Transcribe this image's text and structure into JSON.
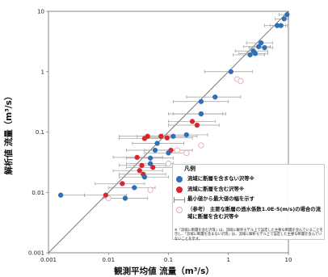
{
  "chart_data": {
    "type": "scatter",
    "xlabel": "観測平均値 流量（m³/s）",
    "ylabel": "解析値 流量（m³/s）",
    "xscale": "log",
    "yscale": "log",
    "xlim": [
      0.001,
      10
    ],
    "ylim": [
      0.001,
      10
    ],
    "xticks": [
      "0.001",
      "0.01",
      "0.1",
      "1",
      "10"
    ],
    "yticks": [
      "0.001",
      "0.01",
      "0.1",
      "1",
      "10"
    ],
    "diagonal": "y = x",
    "legend_placement": "bottom-right",
    "legend_title": "凡例",
    "series": [
      {
        "name": "流域に断層を含まない沢等※",
        "marker": "filled-circle",
        "color": "#2e6fb5",
        "points": [
          {
            "x": 0.0016,
            "y": 0.009,
            "xmin": 0.0016,
            "xmax": 0.004
          },
          {
            "x": 0.019,
            "y": 0.008,
            "xmin": 0.008,
            "xmax": 0.045
          },
          {
            "x": 0.027,
            "y": 0.012,
            "xmin": 0.01,
            "xmax": 0.06
          },
          {
            "x": 0.04,
            "y": 0.018,
            "xmin": 0.015,
            "xmax": 0.1
          },
          {
            "x": 0.05,
            "y": 0.03,
            "xmin": 0.02,
            "xmax": 0.12
          },
          {
            "x": 0.05,
            "y": 0.037,
            "xmin": 0.02,
            "xmax": 0.12
          },
          {
            "x": 0.06,
            "y": 0.05,
            "xmin": 0.02,
            "xmax": 0.15
          },
          {
            "x": 0.065,
            "y": 0.065,
            "xmin": 0.025,
            "xmax": 0.18
          },
          {
            "x": 0.1,
            "y": 0.045,
            "xmin": 0.04,
            "xmax": 0.2
          },
          {
            "x": 0.12,
            "y": 0.085,
            "xmin": 0.04,
            "xmax": 0.3
          },
          {
            "x": 0.2,
            "y": 0.09,
            "xmin": 0.08,
            "xmax": 0.45
          },
          {
            "x": 0.35,
            "y": 0.2,
            "xmin": 0.1,
            "xmax": 0.9
          },
          {
            "x": 0.35,
            "y": 0.32,
            "xmin": 0.12,
            "xmax": 1.0
          },
          {
            "x": 0.6,
            "y": 0.38,
            "xmin": 0.2,
            "xmax": 1.6
          },
          {
            "x": 1.1,
            "y": 1.0,
            "xmin": 0.4,
            "xmax": 2.5
          },
          {
            "x": 2.3,
            "y": 1.9,
            "xmin": 1.2,
            "xmax": 4.0
          },
          {
            "x": 2.6,
            "y": 2.2,
            "xmin": 1.3,
            "xmax": 4.5
          },
          {
            "x": 2.8,
            "y": 2.0,
            "xmin": 1.5,
            "xmax": 4.5
          },
          {
            "x": 3.2,
            "y": 2.6,
            "xmin": 1.8,
            "xmax": 5.0
          },
          {
            "x": 3.5,
            "y": 3.0,
            "xmin": 2.0,
            "xmax": 5.5
          },
          {
            "x": 4.0,
            "y": 2.5,
            "xmin": 2.2,
            "xmax": 5.5
          },
          {
            "x": 6.5,
            "y": 5.8,
            "xmin": 4.0,
            "xmax": 9.0
          },
          {
            "x": 7.5,
            "y": 5.8,
            "xmin": 5.0,
            "xmax": 9.5
          },
          {
            "x": 8.5,
            "y": 7.5,
            "xmin": 6.0,
            "xmax": 9.8
          },
          {
            "x": 9.5,
            "y": 8.8,
            "xmin": 7.0,
            "xmax": 10.0
          }
        ]
      },
      {
        "name": "流域に断層を含む沢等※",
        "marker": "filled-circle",
        "color": "#d9262e",
        "points": [
          {
            "x": 0.009,
            "y": 0.009,
            "xmin": 0.004,
            "xmax": 0.02
          },
          {
            "x": 0.017,
            "y": 0.014,
            "xmin": 0.006,
            "xmax": 0.04
          },
          {
            "x": 0.03,
            "y": 0.038,
            "xmin": 0.012,
            "xmax": 0.08
          },
          {
            "x": 0.033,
            "y": 0.023,
            "xmin": 0.012,
            "xmax": 0.08
          },
          {
            "x": 0.036,
            "y": 0.028,
            "xmin": 0.015,
            "xmax": 0.09
          },
          {
            "x": 0.038,
            "y": 0.02,
            "xmin": 0.015,
            "xmax": 0.09
          },
          {
            "x": 0.04,
            "y": 0.078,
            "xmin": 0.015,
            "xmax": 0.1
          },
          {
            "x": 0.045,
            "y": 0.085,
            "xmin": 0.015,
            "xmax": 0.12
          },
          {
            "x": 0.055,
            "y": 0.026,
            "xmin": 0.02,
            "xmax": 0.12
          },
          {
            "x": 0.075,
            "y": 0.085,
            "xmin": 0.03,
            "xmax": 0.2
          },
          {
            "x": 0.095,
            "y": 0.08,
            "xmin": 0.04,
            "xmax": 0.25
          },
          {
            "x": 0.11,
            "y": 0.05,
            "xmin": 0.04,
            "xmax": 0.25
          },
          {
            "x": 0.25,
            "y": 0.15,
            "xmin": 0.1,
            "xmax": 0.6
          },
          {
            "x": 0.3,
            "y": 0.13,
            "xmin": 0.1,
            "xmax": 0.7
          },
          {
            "x": 0.35,
            "y": 0.2,
            "xmin": 0.12,
            "xmax": 0.8
          }
        ]
      },
      {
        "name": "（参考） 主要な断層の透水係数1.0E-5(m/s)の場合の流域に断層を含む沢等※",
        "marker": "open-circle",
        "color": "#e8a9b3",
        "points": [
          {
            "x": 0.01,
            "y": 0.008
          },
          {
            "x": 0.05,
            "y": 0.011
          },
          {
            "x": 0.1,
            "y": 0.03
          },
          {
            "x": 0.14,
            "y": 0.05
          },
          {
            "x": 0.2,
            "y": 0.045
          },
          {
            "x": 0.25,
            "y": 0.025
          },
          {
            "x": 0.3,
            "y": 0.012
          },
          {
            "x": 0.35,
            "y": 0.06
          },
          {
            "x": 1.4,
            "y": 0.75
          },
          {
            "x": 1.6,
            "y": 0.7
          }
        ]
      }
    ],
    "range_bar_label": "最小値から最大値の幅を示す",
    "footnote": "※「流域に断層を含む沢等」は、流域に解析モデル上で設定した主要な断層を含んでいることを示し、「流域に断層を含まない沢等」は、流域に解析モデル上で設定した主要な断層を含んでいないことを示す。"
  }
}
